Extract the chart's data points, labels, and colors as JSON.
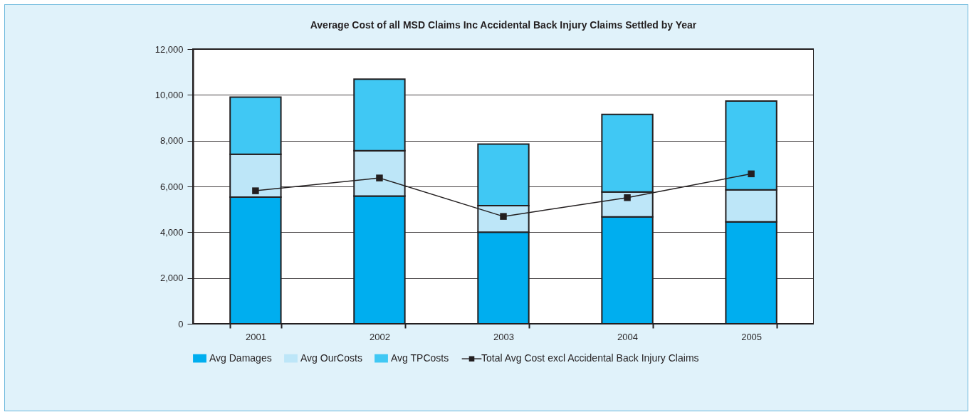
{
  "chart_data": {
    "type": "bar",
    "title": "Average Cost of all MSD Claims Inc Accidental Back Injury Claims Settled by Year",
    "categories": [
      "2001",
      "2002",
      "2003",
      "2004",
      "2005"
    ],
    "stacked": true,
    "series": [
      {
        "name": "Avg Damages",
        "color": "#00aeef",
        "values": [
          5530,
          5580,
          4000,
          4670,
          4450
        ]
      },
      {
        "name": "Avg OurCosts",
        "color": "#bde6f8",
        "values": [
          1880,
          1980,
          1160,
          1090,
          1400
        ]
      },
      {
        "name": "Avg TPCosts",
        "color": "#40c8f4",
        "values": [
          2490,
          3130,
          2690,
          3390,
          3880
        ]
      },
      {
        "name": "Total Avg Cost excl Accidental Back Injury Claims",
        "type": "line",
        "color": "#231f20",
        "values": [
          5810,
          6370,
          4690,
          5510,
          6550
        ]
      }
    ],
    "marker": "square",
    "ylim": [
      0,
      12000
    ],
    "yticks": [
      0,
      {
        "value": 2000,
        "label": "2,000"
      },
      {
        "value": 4000,
        "label": "4,000"
      },
      {
        "value": 6000,
        "label": "6,000"
      },
      {
        "value": 8000,
        "label": "8,000"
      },
      {
        "value": 10000,
        "label": "10,000"
      },
      {
        "value": 12000,
        "label": "12,000"
      }
    ],
    "grid": "y",
    "legend": "bottom"
  }
}
